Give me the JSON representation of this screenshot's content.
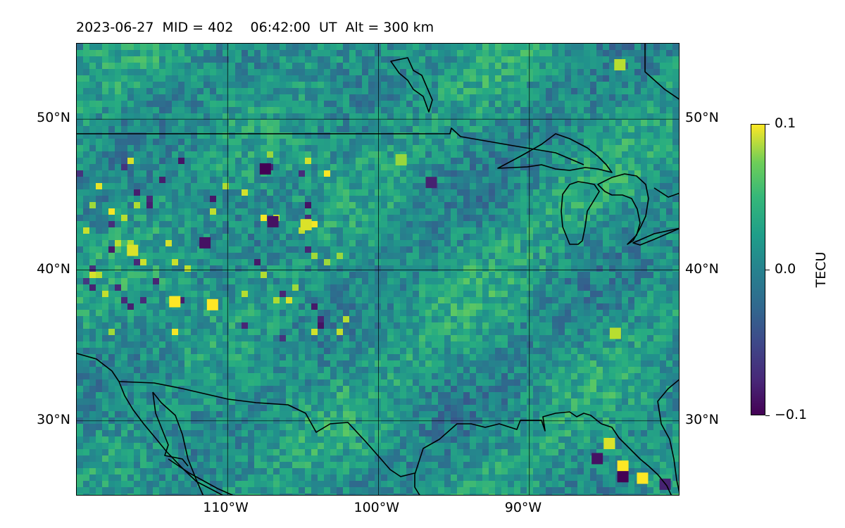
{
  "map": {
    "title": "2023-06-27  MID = 402    06:42:00  UT  Alt = 300 km",
    "extent": {
      "lon": [
        -120,
        -80
      ],
      "lat": [
        25,
        55
      ]
    },
    "lat_ticks": [
      {
        "value": 50,
        "label": "50°N"
      },
      {
        "value": 40,
        "label": "40°N"
      },
      {
        "value": 30,
        "label": "30°N"
      }
    ],
    "lon_ticks": [
      {
        "value": -110,
        "label": "110°W"
      },
      {
        "value": -100,
        "label": "100°W"
      },
      {
        "value": -90,
        "label": "90°W"
      }
    ],
    "colorbar": {
      "label": "TECU",
      "colormap": "viridis",
      "range": [
        -0.1,
        0.1
      ],
      "ticks": [
        {
          "value": 0.1,
          "label": "0.1"
        },
        {
          "value": 0.0,
          "label": "0.0"
        },
        {
          "value": -0.1,
          "label": "−0.1"
        }
      ]
    },
    "field_hotspots": [
      {
        "lon": -116.3,
        "lat": 41.3,
        "value": 0.09
      },
      {
        "lon": -104.8,
        "lat": 43.0,
        "value": 0.09
      },
      {
        "lon": -113.5,
        "lat": 37.9,
        "value": 0.1
      },
      {
        "lon": -111.0,
        "lat": 37.7,
        "value": 0.1
      },
      {
        "lon": -98.5,
        "lat": 47.3,
        "value": 0.07
      },
      {
        "lon": -84.0,
        "lat": 53.6,
        "value": 0.08
      },
      {
        "lon": -84.3,
        "lat": 35.8,
        "value": 0.08
      },
      {
        "lon": -83.8,
        "lat": 27.0,
        "value": 0.1
      },
      {
        "lon": -82.5,
        "lat": 26.2,
        "value": 0.1
      },
      {
        "lon": -84.7,
        "lat": 28.5,
        "value": 0.09
      },
      {
        "lon": -107.5,
        "lat": 46.7,
        "value": -0.1
      },
      {
        "lon": -111.5,
        "lat": 41.8,
        "value": -0.09
      },
      {
        "lon": -107.0,
        "lat": 43.2,
        "value": -0.09
      },
      {
        "lon": -96.5,
        "lat": 45.8,
        "value": -0.08
      },
      {
        "lon": -83.8,
        "lat": 26.3,
        "value": -0.1
      },
      {
        "lon": -85.5,
        "lat": 27.5,
        "value": -0.09
      },
      {
        "lon": -81.0,
        "lat": 25.8,
        "value": -0.08
      }
    ]
  }
}
